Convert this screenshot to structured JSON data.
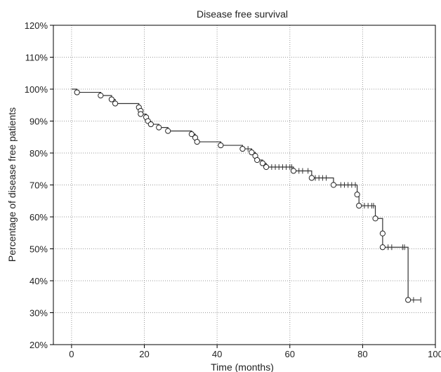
{
  "chart_data": {
    "type": "line",
    "title": "Disease free survival",
    "xlabel": "Time (months)",
    "ylabel": "Percentage of disease free patients",
    "xlim": [
      -5,
      100
    ],
    "ylim": [
      20,
      120
    ],
    "x_ticks": [
      0,
      20,
      40,
      60,
      80,
      100
    ],
    "x_tick_labels": [
      "0",
      "20",
      "40",
      "60",
      "80",
      "100"
    ],
    "y_ticks": [
      20,
      30,
      40,
      50,
      60,
      70,
      80,
      90,
      100,
      110,
      120
    ],
    "y_tick_labels": [
      "20%",
      "30%",
      "40%",
      "50%",
      "60%",
      "70%",
      "80%",
      "90%",
      "100%",
      "110%",
      "120%"
    ],
    "grid": true,
    "series": [
      {
        "steps": [
          [
            0,
            100
          ],
          [
            1.5,
            99
          ],
          [
            8,
            98
          ],
          [
            11,
            96.8
          ],
          [
            12,
            95.5
          ],
          [
            18.5,
            94.3
          ],
          [
            19,
            93.2
          ],
          [
            19,
            92.2
          ],
          [
            20.5,
            91.2
          ],
          [
            21,
            90
          ],
          [
            21.8,
            89
          ],
          [
            24,
            88
          ],
          [
            26.5,
            86.9
          ],
          [
            33,
            85.9
          ],
          [
            34,
            84.8
          ],
          [
            34.5,
            83.5
          ],
          [
            41,
            82.4
          ],
          [
            47,
            81.3
          ],
          [
            49.5,
            80.2
          ],
          [
            50.5,
            79.1
          ],
          [
            51,
            77.8
          ],
          [
            52.5,
            76.8
          ],
          [
            53.5,
            75.6
          ],
          [
            61,
            74.4
          ],
          [
            66,
            72.2
          ],
          [
            72,
            70
          ],
          [
            78.5,
            67
          ],
          [
            79,
            63.5
          ],
          [
            83.5,
            59.5
          ],
          [
            85.5,
            54.8
          ],
          [
            85.5,
            50.5
          ],
          [
            92.5,
            34
          ],
          [
            96,
            34
          ]
        ],
        "events": [
          [
            1.5,
            99
          ],
          [
            8,
            98
          ],
          [
            11,
            96.8
          ],
          [
            12,
            95.5
          ],
          [
            18.5,
            94.3
          ],
          [
            19,
            93.2
          ],
          [
            19,
            92.2
          ],
          [
            20.5,
            91.2
          ],
          [
            21,
            90
          ],
          [
            21.8,
            89
          ],
          [
            24,
            88
          ],
          [
            26.5,
            86.9
          ],
          [
            33,
            85.9
          ],
          [
            34,
            84.8
          ],
          [
            34.5,
            83.5
          ],
          [
            41,
            82.4
          ],
          [
            47,
            81.3
          ],
          [
            49.5,
            80.2
          ],
          [
            50.5,
            79.1
          ],
          [
            51,
            77.8
          ],
          [
            52.5,
            76.8
          ],
          [
            53.5,
            75.6
          ],
          [
            61,
            74.4
          ],
          [
            66,
            72.2
          ],
          [
            72,
            70
          ],
          [
            78.5,
            67
          ],
          [
            79,
            63.5
          ],
          [
            83.5,
            59.5
          ],
          [
            85.5,
            54.8
          ],
          [
            85.5,
            50.5
          ],
          [
            92.5,
            34
          ]
        ],
        "censored": [
          [
            48.5,
            81.3
          ],
          [
            55,
            75.6
          ],
          [
            56,
            75.6
          ],
          [
            57,
            75.6
          ],
          [
            58,
            75.6
          ],
          [
            59,
            75.6
          ],
          [
            60,
            75.6
          ],
          [
            60.5,
            75.6
          ],
          [
            62.5,
            74.4
          ],
          [
            63.5,
            74.4
          ],
          [
            65,
            74.4
          ],
          [
            67,
            72.2
          ],
          [
            68,
            72.2
          ],
          [
            69,
            72.2
          ],
          [
            70,
            72.2
          ],
          [
            74,
            70
          ],
          [
            75,
            70
          ],
          [
            76,
            70
          ],
          [
            77,
            70
          ],
          [
            78,
            70
          ],
          [
            80.5,
            63.5
          ],
          [
            81.5,
            63.5
          ],
          [
            82.5,
            63.5
          ],
          [
            83,
            63.5
          ],
          [
            87,
            50.5
          ],
          [
            88,
            50.5
          ],
          [
            91,
            50.5
          ],
          [
            91.5,
            50.5
          ],
          [
            94,
            34
          ],
          [
            96,
            34
          ]
        ]
      }
    ]
  }
}
